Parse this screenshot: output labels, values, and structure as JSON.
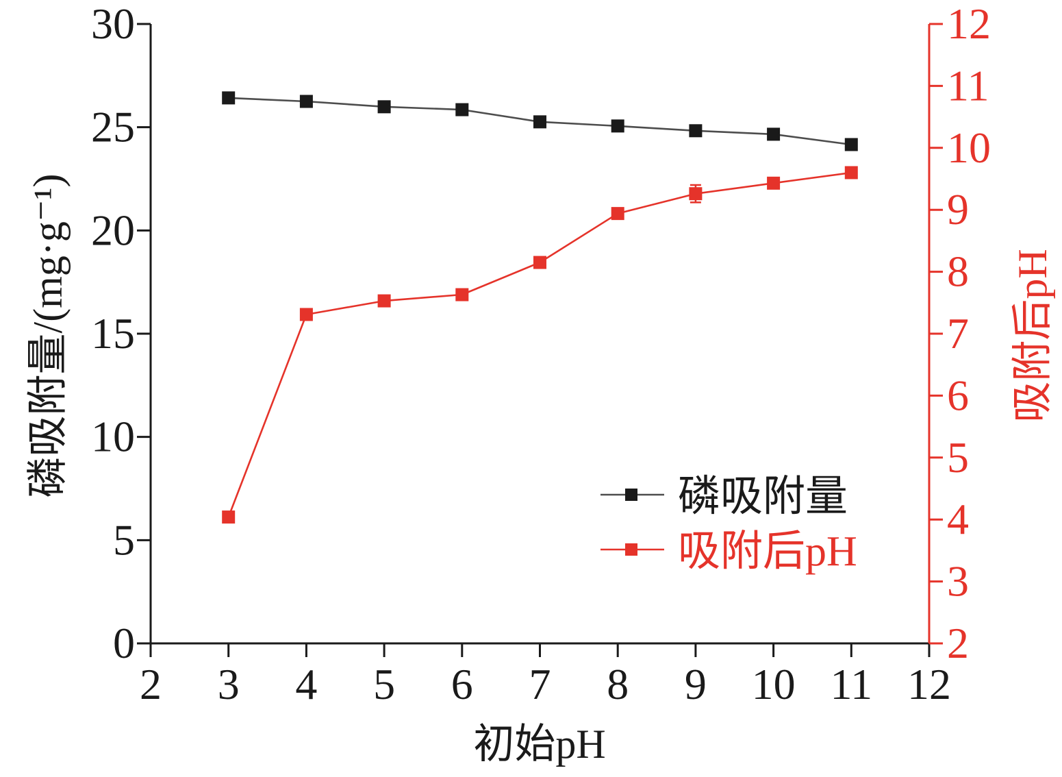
{
  "chart_data": {
    "type": "line",
    "xlabel": "初始pH",
    "ylabel": "磷吸附量/(mg·g⁻¹)",
    "y2label": "吸附后pH",
    "xlim": [
      2,
      12
    ],
    "ylim": [
      0,
      30
    ],
    "y2lim": [
      2,
      12
    ],
    "xticks": [
      2,
      3,
      4,
      5,
      6,
      7,
      8,
      9,
      10,
      11,
      12
    ],
    "yticks": [
      0,
      5,
      10,
      15,
      20,
      25,
      30
    ],
    "y2ticks": [
      2,
      3,
      4,
      5,
      6,
      7,
      8,
      9,
      10,
      11,
      12
    ],
    "grid": false,
    "legend": {
      "position": "lower-right"
    },
    "axis_colors": {
      "left": "#1a1a1a",
      "bottom": "#1a1a1a",
      "right": "#e5332a"
    },
    "x": [
      3,
      4,
      5,
      6,
      7,
      8,
      9,
      10,
      11
    ],
    "series": [
      {
        "name": "磷吸附量",
        "axis": "left",
        "marker": "square",
        "marker_color": "#1a1a1a",
        "line_color": "#4d4d4d",
        "values": [
          26.42,
          26.25,
          25.99,
          25.85,
          25.26,
          25.06,
          24.83,
          24.66,
          24.16
        ]
      },
      {
        "name": "吸附后pH",
        "axis": "right",
        "marker": "square",
        "marker_color": "#e5332a",
        "line_color": "#e5332a",
        "values": [
          4.04,
          7.31,
          7.53,
          7.63,
          8.15,
          8.94,
          9.26,
          9.43,
          9.6
        ],
        "errors": [
          0,
          0,
          0,
          0,
          0,
          0,
          0.14,
          0,
          0
        ]
      }
    ]
  }
}
